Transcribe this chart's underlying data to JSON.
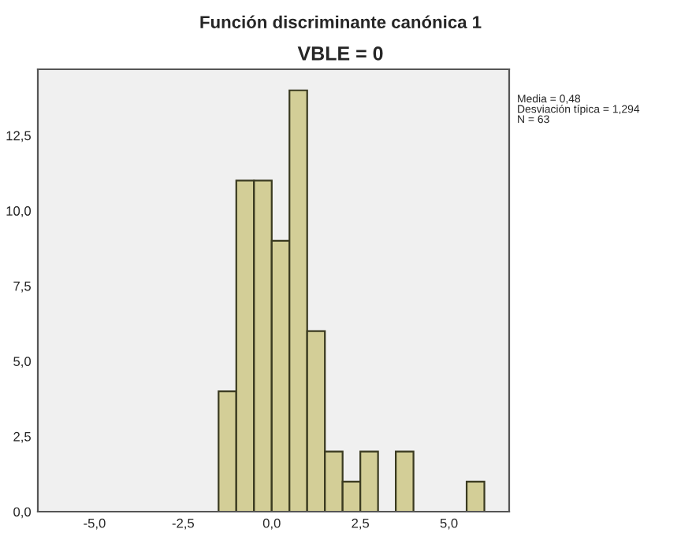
{
  "chart_data": {
    "type": "histogram",
    "title": "Función discriminante canónica 1",
    "subtitle": "VBLE = 0",
    "bins": [
      -1.5,
      -1.0,
      -0.5,
      0.0,
      0.5,
      1.0,
      1.5,
      2.0,
      2.5,
      3.0,
      3.5,
      4.0,
      4.5,
      5.0,
      5.5,
      6.0
    ],
    "values": [
      4,
      11,
      11,
      9,
      14,
      6,
      2,
      1,
      2,
      0,
      2,
      0,
      0,
      0,
      1
    ],
    "color": "#d3ce97",
    "xlim": [
      -6.6,
      6.7
    ],
    "ylim": [
      0,
      14.7
    ],
    "xticks": [
      {
        "value": -5,
        "label": "-5,0"
      },
      {
        "value": -2.5,
        "label": "-2,5"
      },
      {
        "value": 0,
        "label": "0,0"
      },
      {
        "value": 2.5,
        "label": "2,5"
      },
      {
        "value": 5,
        "label": "5,0"
      }
    ],
    "yticks": [
      {
        "value": 0,
        "label": "0,0"
      },
      {
        "value": 2.5,
        "label": "2,5"
      },
      {
        "value": 5,
        "label": "5,0"
      },
      {
        "value": 7.5,
        "label": "7,5"
      },
      {
        "value": 10,
        "label": "10,0"
      },
      {
        "value": 12.5,
        "label": "12,5"
      }
    ],
    "grid": false,
    "annotations": [
      "Media = 0,48\nDesviación típica = 1,294\nN = 63"
    ]
  }
}
